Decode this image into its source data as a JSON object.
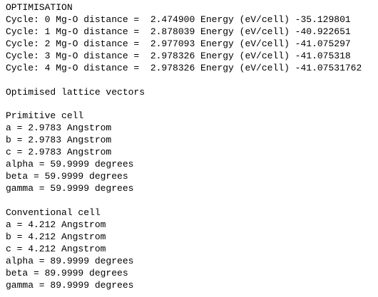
{
  "title": "OPTIMISATION",
  "cycles": [
    "Cycle: 0 Mg-O distance =  2.474900 Energy (eV/cell) -35.129801",
    "Cycle: 1 Mg-O distance =  2.878039 Energy (eV/cell) -40.922651",
    "Cycle: 2 Mg-O distance =  2.977093 Energy (eV/cell) -41.075297",
    "Cycle: 3 Mg-O distance =  2.978326 Energy (eV/cell) -41.075318",
    "Cycle: 4 Mg-O distance =  2.978326 Energy (eV/cell) -41.07531762"
  ],
  "lattice_heading": "Optimised lattice vectors",
  "primitive": {
    "heading": "Primitive cell",
    "lines": [
      "a = 2.9783 Angstrom",
      "b = 2.9783 Angstrom",
      "c = 2.9783 Angstrom",
      "alpha = 59.9999 degrees",
      "beta = 59.9999 degrees",
      "gamma = 59.9999 degrees"
    ]
  },
  "conventional": {
    "heading": "Conventional cell",
    "lines": [
      "a = 4.212 Angstrom",
      "b = 4.212 Angstrom",
      "c = 4.212 Angstrom",
      "alpha = 89.9999 degrees",
      "beta = 89.9999 degrees",
      "gamma = 89.9999 degrees"
    ]
  }
}
